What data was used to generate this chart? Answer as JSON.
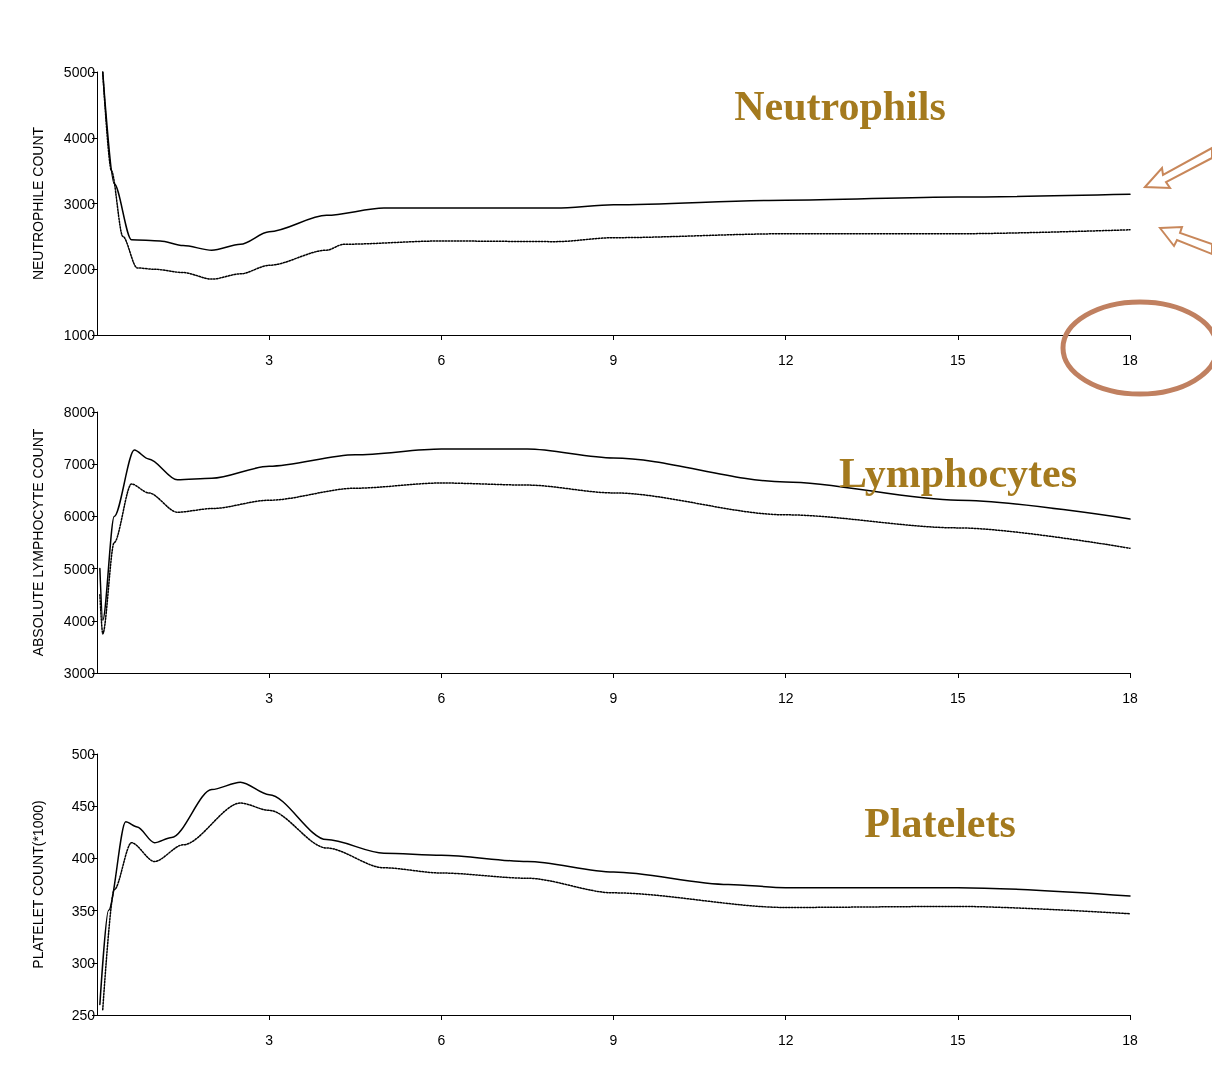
{
  "chart_data": [
    {
      "type": "line",
      "title": "Neutrophils",
      "ylabel": "NEUTROPHILE COUNT",
      "xlim": [
        0,
        18
      ],
      "xticks": [
        3,
        6,
        9,
        12,
        15,
        18
      ],
      "ylim": [
        1000,
        5000
      ],
      "yticks": [
        1000,
        2000,
        3000,
        4000,
        5000
      ],
      "grid": false,
      "marker": "none",
      "series": [
        {
          "color": "#000000",
          "line_style": "solid",
          "x": [
            0.1,
            0.3,
            0.6,
            1.1,
            1.5,
            2,
            2.5,
            3,
            4,
            5,
            6,
            8,
            9,
            12,
            15,
            18
          ],
          "values": [
            5000,
            3300,
            2450,
            2430,
            2360,
            2290,
            2380,
            2570,
            2820,
            2930,
            2930,
            2930,
            2980,
            3050,
            3100,
            3140
          ]
        },
        {
          "color": "#000000",
          "line_style": "dotted",
          "x": [
            0.1,
            0.25,
            0.45,
            0.7,
            1,
            1.5,
            2,
            2.5,
            3,
            4,
            4.3,
            6,
            8,
            9,
            12,
            15,
            18
          ],
          "values": [
            5000,
            3500,
            2500,
            2020,
            2000,
            1950,
            1850,
            1930,
            2060,
            2290,
            2380,
            2430,
            2420,
            2480,
            2540,
            2540,
            2600
          ]
        }
      ]
    },
    {
      "type": "line",
      "title": "Lymphocytes",
      "ylabel": "ABSOLUTE LYMPHOCYTE COUNT",
      "xlim": [
        0,
        18
      ],
      "xticks": [
        3,
        6,
        9,
        12,
        15,
        18
      ],
      "ylim": [
        3000,
        8000
      ],
      "yticks": [
        3000,
        4000,
        5000,
        6000,
        7000,
        8000
      ],
      "grid": false,
      "marker": "none",
      "series": [
        {
          "color": "#000000",
          "line_style": "solid",
          "x": [
            0.05,
            0.1,
            0.3,
            0.65,
            0.9,
            1.4,
            2,
            3,
            4.5,
            6,
            7.5,
            9,
            12,
            15,
            18
          ],
          "values": [
            5000,
            4010,
            6000,
            7270,
            7100,
            6700,
            6730,
            6960,
            7180,
            7290,
            7290,
            7120,
            6660,
            6310,
            5950
          ]
        },
        {
          "color": "#000000",
          "line_style": "dotted",
          "x": [
            0.05,
            0.1,
            0.3,
            0.6,
            0.9,
            1.4,
            2,
            3,
            4.5,
            6,
            7.5,
            9,
            12,
            15,
            18
          ],
          "values": [
            4500,
            3750,
            5500,
            6620,
            6450,
            6080,
            6150,
            6310,
            6540,
            6640,
            6600,
            6450,
            6030,
            5780,
            5390
          ]
        }
      ]
    },
    {
      "type": "line",
      "title": "Platelets",
      "ylabel": "PLATELET COUNT(*1000)",
      "xlim": [
        0,
        18
      ],
      "xticks": [
        3,
        6,
        9,
        12,
        15,
        18
      ],
      "ylim": [
        250,
        500
      ],
      "yticks": [
        250,
        300,
        350,
        400,
        450,
        500
      ],
      "grid": false,
      "marker": "none",
      "series": [
        {
          "color": "#000000",
          "line_style": "solid",
          "x": [
            0.05,
            0.2,
            0.5,
            0.7,
            1,
            1.3,
            2,
            2.5,
            3,
            4,
            5,
            6,
            7.5,
            9,
            11,
            12,
            15,
            18
          ],
          "values": [
            260,
            350,
            435,
            430,
            415,
            420,
            466,
            473,
            461,
            418,
            405,
            403,
            397,
            387,
            375,
            372,
            372,
            364
          ]
        },
        {
          "color": "#000000",
          "line_style": "dotted",
          "x": [
            0.1,
            0.3,
            0.6,
            1,
            1.5,
            2.5,
            3,
            4,
            5,
            6,
            7.5,
            9,
            12,
            15,
            18
          ],
          "values": [
            255,
            370,
            415,
            397,
            413,
            453,
            446,
            410,
            391,
            386,
            381,
            367,
            353,
            354,
            347
          ]
        }
      ]
    }
  ]
}
